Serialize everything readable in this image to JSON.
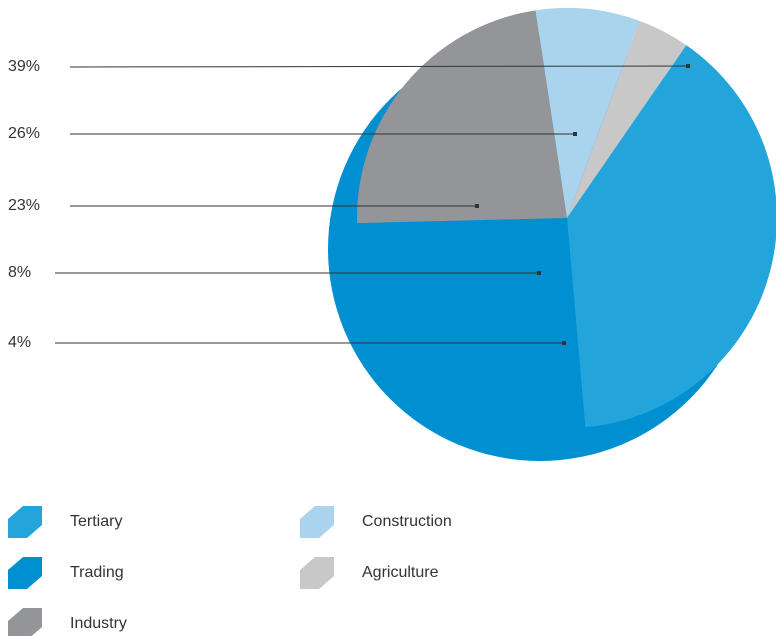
{
  "chart_data": {
    "type": "pie",
    "categories": [
      "Tertiary",
      "Trading",
      "Industry",
      "Construction",
      "Agriculture"
    ],
    "values": [
      39,
      26,
      23,
      8,
      4
    ],
    "value_labels": [
      "39%",
      "26%",
      "23%",
      "8%",
      "4%"
    ],
    "colors": [
      "#23a5dc",
      "#0090d2",
      "#939598",
      "#aad4ee",
      "#c8c8c8"
    ]
  }
}
